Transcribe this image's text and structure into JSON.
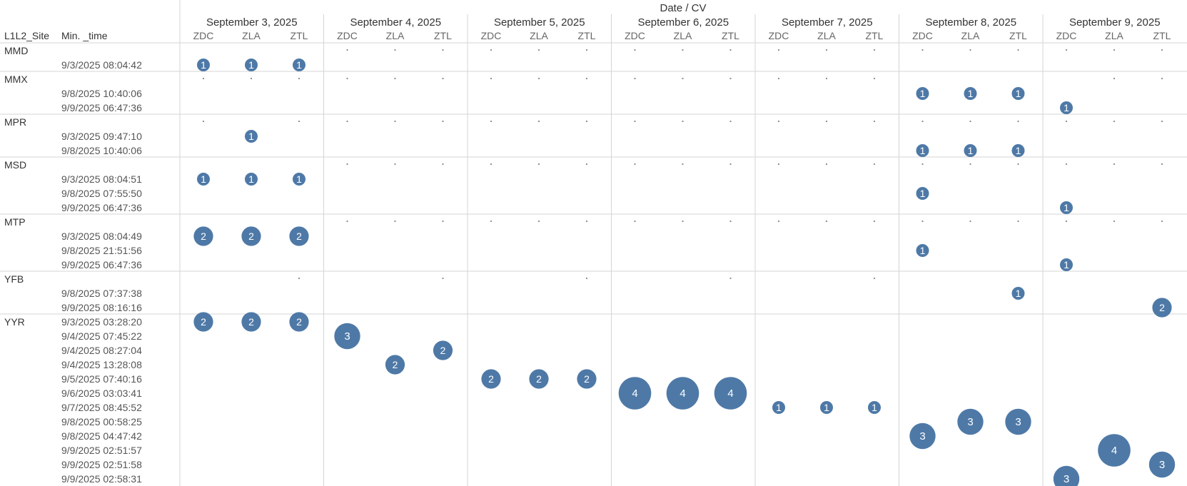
{
  "header": {
    "columns_title": "Date / CV",
    "row_dim_1": "L1L2_Site",
    "row_dim_2": "Min. _time"
  },
  "colors": {
    "bubble": "#4e79a7",
    "grid": "#d4d4d4",
    "text": "#333333"
  },
  "chart_data": {
    "type": "scatter",
    "title": "",
    "encoding": "bubble size and label = count of records",
    "dates": [
      "September 3, 2025",
      "September 4, 2025",
      "September 5, 2025",
      "September 6, 2025",
      "September 7, 2025",
      "September 8, 2025",
      "September 9, 2025"
    ],
    "cvs": [
      "ZDC",
      "ZLA",
      "ZTL"
    ],
    "sites": [
      {
        "name": "MMD",
        "times": [
          "9/3/2025 08:04:42"
        ]
      },
      {
        "name": "MMX",
        "times": [
          "9/8/2025 10:40:06",
          "9/9/2025 06:47:36"
        ]
      },
      {
        "name": "MPR",
        "times": [
          "9/3/2025 09:47:10",
          "9/8/2025 10:40:06"
        ]
      },
      {
        "name": "MSD",
        "times": [
          "9/3/2025 08:04:51",
          "9/8/2025 07:55:50",
          "9/9/2025 06:47:36"
        ]
      },
      {
        "name": "MTP",
        "times": [
          "9/3/2025 08:04:49",
          "9/8/2025 21:51:56",
          "9/9/2025 06:47:36"
        ]
      },
      {
        "name": "YFB",
        "times": [
          "9/8/2025 07:37:38",
          "9/9/2025 08:16:16"
        ]
      },
      {
        "name": "YYR",
        "times": [
          "9/3/2025 03:28:20",
          "9/4/2025 07:45:22",
          "9/4/2025 08:27:04",
          "9/4/2025 13:28:08",
          "9/5/2025 07:40:16",
          "9/6/2025 03:03:41",
          "9/7/2025 08:45:52",
          "9/8/2025 00:58:25",
          "9/8/2025 04:47:42",
          "9/9/2025 02:51:57",
          "9/9/2025 02:51:58",
          "9/9/2025 02:58:31"
        ]
      }
    ],
    "points": [
      {
        "site": "MMD",
        "date": "September 3, 2025",
        "cv": "ZDC",
        "time": "9/3/2025 08:04:42",
        "value": 1
      },
      {
        "site": "MMD",
        "date": "September 3, 2025",
        "cv": "ZLA",
        "time": "9/3/2025 08:04:42",
        "value": 1
      },
      {
        "site": "MMD",
        "date": "September 3, 2025",
        "cv": "ZTL",
        "time": "9/3/2025 08:04:42",
        "value": 1
      },
      {
        "site": "MMX",
        "date": "September 8, 2025",
        "cv": "ZDC",
        "time": "9/8/2025 10:40:06",
        "value": 1
      },
      {
        "site": "MMX",
        "date": "September 8, 2025",
        "cv": "ZLA",
        "time": "9/8/2025 10:40:06",
        "value": 1
      },
      {
        "site": "MMX",
        "date": "September 8, 2025",
        "cv": "ZTL",
        "time": "9/8/2025 10:40:06",
        "value": 1
      },
      {
        "site": "MMX",
        "date": "September 9, 2025",
        "cv": "ZDC",
        "time": "9/9/2025 06:47:36",
        "value": 1
      },
      {
        "site": "MPR",
        "date": "September 3, 2025",
        "cv": "ZLA",
        "time": "9/3/2025 09:47:10",
        "value": 1
      },
      {
        "site": "MPR",
        "date": "September 8, 2025",
        "cv": "ZDC",
        "time": "9/8/2025 10:40:06",
        "value": 1
      },
      {
        "site": "MPR",
        "date": "September 8, 2025",
        "cv": "ZLA",
        "time": "9/8/2025 10:40:06",
        "value": 1
      },
      {
        "site": "MPR",
        "date": "September 8, 2025",
        "cv": "ZTL",
        "time": "9/8/2025 10:40:06",
        "value": 1
      },
      {
        "site": "MSD",
        "date": "September 3, 2025",
        "cv": "ZDC",
        "time": "9/3/2025 08:04:51",
        "value": 1
      },
      {
        "site": "MSD",
        "date": "September 3, 2025",
        "cv": "ZLA",
        "time": "9/3/2025 08:04:51",
        "value": 1
      },
      {
        "site": "MSD",
        "date": "September 3, 2025",
        "cv": "ZTL",
        "time": "9/3/2025 08:04:51",
        "value": 1
      },
      {
        "site": "MSD",
        "date": "September 8, 2025",
        "cv": "ZDC",
        "time": "9/8/2025 07:55:50",
        "value": 1
      },
      {
        "site": "MSD",
        "date": "September 9, 2025",
        "cv": "ZDC",
        "time": "9/9/2025 06:47:36",
        "value": 1
      },
      {
        "site": "MTP",
        "date": "September 3, 2025",
        "cv": "ZDC",
        "time": "9/3/2025 08:04:49",
        "value": 2
      },
      {
        "site": "MTP",
        "date": "September 3, 2025",
        "cv": "ZLA",
        "time": "9/3/2025 08:04:49",
        "value": 2
      },
      {
        "site": "MTP",
        "date": "September 3, 2025",
        "cv": "ZTL",
        "time": "9/3/2025 08:04:49",
        "value": 2
      },
      {
        "site": "MTP",
        "date": "September 8, 2025",
        "cv": "ZDC",
        "time": "9/8/2025 21:51:56",
        "value": 1
      },
      {
        "site": "MTP",
        "date": "September 9, 2025",
        "cv": "ZDC",
        "time": "9/9/2025 06:47:36",
        "value": 1
      },
      {
        "site": "YFB",
        "date": "September 8, 2025",
        "cv": "ZTL",
        "time": "9/8/2025 07:37:38",
        "value": 1
      },
      {
        "site": "YFB",
        "date": "September 9, 2025",
        "cv": "ZTL",
        "time": "9/9/2025 08:16:16",
        "value": 2
      },
      {
        "site": "YYR",
        "date": "September 3, 2025",
        "cv": "ZDC",
        "time": "9/3/2025 03:28:20",
        "value": 2
      },
      {
        "site": "YYR",
        "date": "September 3, 2025",
        "cv": "ZLA",
        "time": "9/3/2025 03:28:20",
        "value": 2
      },
      {
        "site": "YYR",
        "date": "September 3, 2025",
        "cv": "ZTL",
        "time": "9/3/2025 03:28:20",
        "value": 2
      },
      {
        "site": "YYR",
        "date": "September 4, 2025",
        "cv": "ZDC",
        "time": "9/4/2025 07:45:22",
        "value": 3
      },
      {
        "site": "YYR",
        "date": "September 4, 2025",
        "cv": "ZLA",
        "time": "9/4/2025 13:28:08",
        "value": 2
      },
      {
        "site": "YYR",
        "date": "September 4, 2025",
        "cv": "ZTL",
        "time": "9/4/2025 08:27:04",
        "value": 2
      },
      {
        "site": "YYR",
        "date": "September 5, 2025",
        "cv": "ZDC",
        "time": "9/5/2025 07:40:16",
        "value": 2
      },
      {
        "site": "YYR",
        "date": "September 5, 2025",
        "cv": "ZLA",
        "time": "9/5/2025 07:40:16",
        "value": 2
      },
      {
        "site": "YYR",
        "date": "September 5, 2025",
        "cv": "ZTL",
        "time": "9/5/2025 07:40:16",
        "value": 2
      },
      {
        "site": "YYR",
        "date": "September 6, 2025",
        "cv": "ZDC",
        "time": "9/6/2025 03:03:41",
        "value": 4
      },
      {
        "site": "YYR",
        "date": "September 6, 2025",
        "cv": "ZLA",
        "time": "9/6/2025 03:03:41",
        "value": 4
      },
      {
        "site": "YYR",
        "date": "September 6, 2025",
        "cv": "ZTL",
        "time": "9/6/2025 03:03:41",
        "value": 4
      },
      {
        "site": "YYR",
        "date": "September 7, 2025",
        "cv": "ZDC",
        "time": "9/7/2025 08:45:52",
        "value": 1
      },
      {
        "site": "YYR",
        "date": "September 7, 2025",
        "cv": "ZLA",
        "time": "9/7/2025 08:45:52",
        "value": 1
      },
      {
        "site": "YYR",
        "date": "September 7, 2025",
        "cv": "ZTL",
        "time": "9/7/2025 08:45:52",
        "value": 1
      },
      {
        "site": "YYR",
        "date": "September 8, 2025",
        "cv": "ZDC",
        "time": "9/8/2025 04:47:42",
        "value": 3
      },
      {
        "site": "YYR",
        "date": "September 8, 2025",
        "cv": "ZLA",
        "time": "9/8/2025 00:58:25",
        "value": 3
      },
      {
        "site": "YYR",
        "date": "September 8, 2025",
        "cv": "ZTL",
        "time": "9/8/2025 00:58:25",
        "value": 3
      },
      {
        "site": "YYR",
        "date": "September 9, 2025",
        "cv": "ZDC",
        "time": "9/9/2025 02:58:31",
        "value": 3
      },
      {
        "site": "YYR",
        "date": "September 9, 2025",
        "cv": "ZLA",
        "time": "9/9/2025 02:51:57",
        "value": 4
      },
      {
        "site": "YYR",
        "date": "September 9, 2025",
        "cv": "ZTL",
        "time": "9/9/2025 02:51:58",
        "value": 3
      }
    ],
    "null_markers": [
      {
        "site": "MMD",
        "cells": [
          [
            1,
            0
          ],
          [
            1,
            1
          ],
          [
            1,
            2
          ],
          [
            2,
            0
          ],
          [
            2,
            1
          ],
          [
            2,
            2
          ],
          [
            3,
            0
          ],
          [
            3,
            1
          ],
          [
            3,
            2
          ],
          [
            4,
            0
          ],
          [
            4,
            1
          ],
          [
            4,
            2
          ],
          [
            5,
            0
          ],
          [
            5,
            1
          ],
          [
            5,
            2
          ],
          [
            6,
            0
          ],
          [
            6,
            1
          ],
          [
            6,
            2
          ]
        ]
      },
      {
        "site": "MMX",
        "cells": [
          [
            0,
            0
          ],
          [
            0,
            1
          ],
          [
            0,
            2
          ],
          [
            1,
            0
          ],
          [
            1,
            1
          ],
          [
            1,
            2
          ],
          [
            2,
            0
          ],
          [
            2,
            1
          ],
          [
            2,
            2
          ],
          [
            3,
            0
          ],
          [
            3,
            1
          ],
          [
            3,
            2
          ],
          [
            4,
            0
          ],
          [
            4,
            1
          ],
          [
            4,
            2
          ],
          [
            6,
            1
          ],
          [
            6,
            2
          ]
        ]
      },
      {
        "site": "MPR",
        "cells": [
          [
            0,
            0
          ],
          [
            0,
            2
          ],
          [
            1,
            0
          ],
          [
            1,
            1
          ],
          [
            1,
            2
          ],
          [
            2,
            0
          ],
          [
            2,
            1
          ],
          [
            2,
            2
          ],
          [
            3,
            0
          ],
          [
            3,
            1
          ],
          [
            3,
            2
          ],
          [
            4,
            0
          ],
          [
            4,
            1
          ],
          [
            4,
            2
          ],
          [
            5,
            0
          ],
          [
            5,
            1
          ],
          [
            5,
            2
          ],
          [
            6,
            0
          ],
          [
            6,
            1
          ],
          [
            6,
            2
          ]
        ]
      },
      {
        "site": "MSD",
        "cells": [
          [
            1,
            0
          ],
          [
            1,
            1
          ],
          [
            1,
            2
          ],
          [
            2,
            0
          ],
          [
            2,
            1
          ],
          [
            2,
            2
          ],
          [
            3,
            0
          ],
          [
            3,
            1
          ],
          [
            3,
            2
          ],
          [
            4,
            0
          ],
          [
            4,
            1
          ],
          [
            4,
            2
          ],
          [
            5,
            0
          ],
          [
            5,
            1
          ],
          [
            5,
            2
          ],
          [
            6,
            0
          ],
          [
            6,
            1
          ],
          [
            6,
            2
          ]
        ]
      },
      {
        "site": "MTP",
        "cells": [
          [
            1,
            0
          ],
          [
            1,
            1
          ],
          [
            1,
            2
          ],
          [
            2,
            0
          ],
          [
            2,
            1
          ],
          [
            2,
            2
          ],
          [
            3,
            0
          ],
          [
            3,
            1
          ],
          [
            3,
            2
          ],
          [
            4,
            0
          ],
          [
            4,
            1
          ],
          [
            4,
            2
          ],
          [
            5,
            0
          ],
          [
            5,
            1
          ],
          [
            5,
            2
          ],
          [
            6,
            0
          ],
          [
            6,
            1
          ],
          [
            6,
            2
          ]
        ]
      },
      {
        "site": "YFB",
        "cells": [
          [
            0,
            2
          ],
          [
            1,
            2
          ],
          [
            2,
            2
          ],
          [
            3,
            2
          ],
          [
            4,
            2
          ]
        ]
      }
    ]
  }
}
